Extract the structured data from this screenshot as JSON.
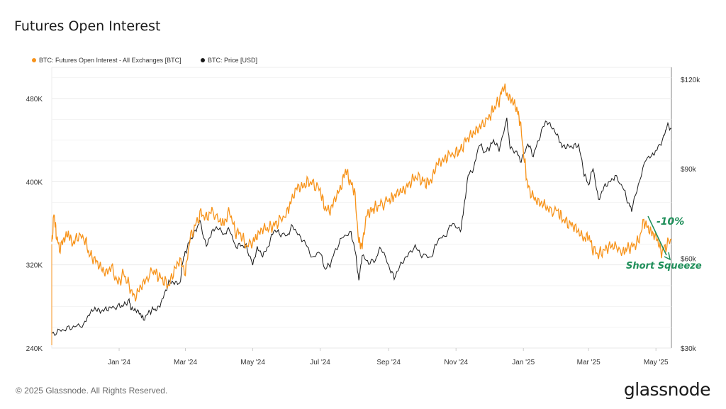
{
  "page": {
    "title": "Futures Open Interest",
    "footer": "© 2025 Glassnode. All Rights Reserved.",
    "brand": "glassnode"
  },
  "chart_data": {
    "type": "line",
    "x_start": "2023-11-01",
    "x_end": "2025-05-15",
    "x_ticks": [
      "Jan '24",
      "Mar '24",
      "May '24",
      "Jul '24",
      "Sep '24",
      "Nov '24",
      "Jan '25",
      "Mar '25",
      "May '25"
    ],
    "y_left_ticks": [
      "240K",
      "320K",
      "400K",
      "480K"
    ],
    "y_right_ticks": [
      "$30k",
      "$60k",
      "$90k",
      "$120k"
    ],
    "y_left_range": [
      240000,
      510000
    ],
    "y_right_range": [
      30000,
      124000
    ],
    "legend": "top-left",
    "grid": true,
    "colors": {
      "oi": "#f7931a",
      "price": "#1a1a1a",
      "annotation": "#1f8f5a"
    },
    "series": [
      {
        "name": "BTC: Futures Open Interest - All Exchanges [BTC]",
        "axis": "left",
        "color": "#f7931a",
        "points": [
          [
            "2023-11-01",
            340000
          ],
          [
            "2023-11-03",
            370000
          ],
          [
            "2023-11-05",
            350000
          ],
          [
            "2023-11-08",
            335000
          ],
          [
            "2023-11-12",
            345000
          ],
          [
            "2023-11-16",
            350000
          ],
          [
            "2023-11-20",
            340000
          ],
          [
            "2023-11-25",
            348000
          ],
          [
            "2023-12-01",
            345000
          ],
          [
            "2023-12-05",
            330000
          ],
          [
            "2023-12-10",
            325000
          ],
          [
            "2023-12-15",
            318000
          ],
          [
            "2023-12-20",
            312000
          ],
          [
            "2023-12-25",
            318000
          ],
          [
            "2023-12-31",
            302000
          ],
          [
            "2024-01-05",
            312000
          ],
          [
            "2024-01-10",
            300000
          ],
          [
            "2024-01-15",
            288000
          ],
          [
            "2024-01-20",
            298000
          ],
          [
            "2024-01-25",
            305000
          ],
          [
            "2024-02-01",
            315000
          ],
          [
            "2024-02-05",
            310000
          ],
          [
            "2024-02-10",
            305000
          ],
          [
            "2024-02-15",
            300000
          ],
          [
            "2024-02-20",
            315000
          ],
          [
            "2024-02-25",
            325000
          ],
          [
            "2024-03-01",
            312000
          ],
          [
            "2024-03-05",
            345000
          ],
          [
            "2024-03-10",
            358000
          ],
          [
            "2024-03-15",
            370000
          ],
          [
            "2024-03-20",
            365000
          ],
          [
            "2024-03-25",
            372000
          ],
          [
            "2024-04-01",
            362000
          ],
          [
            "2024-04-05",
            360000
          ],
          [
            "2024-04-10",
            372000
          ],
          [
            "2024-04-15",
            352000
          ],
          [
            "2024-04-20",
            350000
          ],
          [
            "2024-04-25",
            338000
          ],
          [
            "2024-05-01",
            342000
          ],
          [
            "2024-05-05",
            348000
          ],
          [
            "2024-05-10",
            355000
          ],
          [
            "2024-05-15",
            355000
          ],
          [
            "2024-05-20",
            358000
          ],
          [
            "2024-05-25",
            362000
          ],
          [
            "2024-06-01",
            370000
          ],
          [
            "2024-06-05",
            382000
          ],
          [
            "2024-06-10",
            395000
          ],
          [
            "2024-06-15",
            395000
          ],
          [
            "2024-06-20",
            400000
          ],
          [
            "2024-06-25",
            398000
          ],
          [
            "2024-07-01",
            392000
          ],
          [
            "2024-07-05",
            375000
          ],
          [
            "2024-07-10",
            372000
          ],
          [
            "2024-07-15",
            385000
          ],
          [
            "2024-07-20",
            395000
          ],
          [
            "2024-07-24",
            412000
          ],
          [
            "2024-07-28",
            400000
          ],
          [
            "2024-08-01",
            392000
          ],
          [
            "2024-08-05",
            342000
          ],
          [
            "2024-08-08",
            338000
          ],
          [
            "2024-08-12",
            368000
          ],
          [
            "2024-08-16",
            372000
          ],
          [
            "2024-08-20",
            375000
          ],
          [
            "2024-08-25",
            378000
          ],
          [
            "2024-09-01",
            382000
          ],
          [
            "2024-09-05",
            385000
          ],
          [
            "2024-09-10",
            390000
          ],
          [
            "2024-09-15",
            392000
          ],
          [
            "2024-09-20",
            398000
          ],
          [
            "2024-09-25",
            405000
          ],
          [
            "2024-10-01",
            402000
          ],
          [
            "2024-10-05",
            398000
          ],
          [
            "2024-10-10",
            402000
          ],
          [
            "2024-10-15",
            418000
          ],
          [
            "2024-10-20",
            420000
          ],
          [
            "2024-10-25",
            425000
          ],
          [
            "2024-11-01",
            428000
          ],
          [
            "2024-11-05",
            430000
          ],
          [
            "2024-11-10",
            440000
          ],
          [
            "2024-11-15",
            445000
          ],
          [
            "2024-11-20",
            450000
          ],
          [
            "2024-11-25",
            455000
          ],
          [
            "2024-12-01",
            462000
          ],
          [
            "2024-12-05",
            470000
          ],
          [
            "2024-12-10",
            478000
          ],
          [
            "2024-12-14",
            492000
          ],
          [
            "2024-12-18",
            482000
          ],
          [
            "2024-12-22",
            478000
          ],
          [
            "2024-12-26",
            470000
          ],
          [
            "2024-12-29",
            458000
          ],
          [
            "2025-01-02",
            420000
          ],
          [
            "2025-01-05",
            395000
          ],
          [
            "2025-01-10",
            385000
          ],
          [
            "2025-01-15",
            380000
          ],
          [
            "2025-01-20",
            378000
          ],
          [
            "2025-01-25",
            372000
          ],
          [
            "2025-02-01",
            372000
          ],
          [
            "2025-02-05",
            365000
          ],
          [
            "2025-02-10",
            360000
          ],
          [
            "2025-02-15",
            358000
          ],
          [
            "2025-02-20",
            352000
          ],
          [
            "2025-02-25",
            345000
          ],
          [
            "2025-03-01",
            348000
          ],
          [
            "2025-03-05",
            335000
          ],
          [
            "2025-03-10",
            330000
          ],
          [
            "2025-03-15",
            334000
          ],
          [
            "2025-03-20",
            338000
          ],
          [
            "2025-03-25",
            338000
          ],
          [
            "2025-04-01",
            332000
          ],
          [
            "2025-04-05",
            336000
          ],
          [
            "2025-04-10",
            338000
          ],
          [
            "2025-04-15",
            342000
          ],
          [
            "2025-04-20",
            362000
          ],
          [
            "2025-04-24",
            355000
          ],
          [
            "2025-04-28",
            350000
          ],
          [
            "2025-05-02",
            345000
          ],
          [
            "2025-05-06",
            332000
          ],
          [
            "2025-05-10",
            338000
          ],
          [
            "2025-05-15",
            345000
          ]
        ]
      },
      {
        "name": "BTC: Price [USD]",
        "axis": "right",
        "color": "#1a1a1a",
        "points": [
          [
            "2023-11-01",
            34500
          ],
          [
            "2023-11-08",
            35800
          ],
          [
            "2023-11-15",
            36500
          ],
          [
            "2023-11-22",
            37200
          ],
          [
            "2023-11-30",
            37800
          ],
          [
            "2023-12-05",
            41500
          ],
          [
            "2023-12-10",
            43200
          ],
          [
            "2023-12-15",
            42300
          ],
          [
            "2023-12-20",
            43000
          ],
          [
            "2023-12-25",
            43500
          ],
          [
            "2024-01-01",
            44000
          ],
          [
            "2024-01-05",
            44200
          ],
          [
            "2024-01-10",
            46000
          ],
          [
            "2024-01-12",
            43000
          ],
          [
            "2024-01-16",
            42800
          ],
          [
            "2024-01-20",
            41600
          ],
          [
            "2024-01-23",
            39600
          ],
          [
            "2024-01-28",
            42000
          ],
          [
            "2024-02-01",
            43000
          ],
          [
            "2024-02-05",
            43000
          ],
          [
            "2024-02-10",
            47000
          ],
          [
            "2024-02-15",
            52000
          ],
          [
            "2024-02-20",
            52000
          ],
          [
            "2024-02-25",
            51500
          ],
          [
            "2024-02-28",
            60000
          ],
          [
            "2024-03-01",
            62000
          ],
          [
            "2024-03-05",
            66000
          ],
          [
            "2024-03-10",
            69000
          ],
          [
            "2024-03-14",
            72500
          ],
          [
            "2024-03-20",
            64000
          ],
          [
            "2024-03-25",
            69000
          ],
          [
            "2024-03-30",
            70500
          ],
          [
            "2024-04-05",
            68000
          ],
          [
            "2024-04-10",
            70000
          ],
          [
            "2024-04-15",
            64000
          ],
          [
            "2024-04-20",
            64500
          ],
          [
            "2024-04-25",
            64000
          ],
          [
            "2024-05-01",
            58000
          ],
          [
            "2024-05-05",
            63500
          ],
          [
            "2024-05-10",
            61000
          ],
          [
            "2024-05-15",
            64000
          ],
          [
            "2024-05-20",
            69500
          ],
          [
            "2024-05-25",
            68500
          ],
          [
            "2024-06-01",
            67500
          ],
          [
            "2024-06-06",
            71000
          ],
          [
            "2024-06-12",
            67500
          ],
          [
            "2024-06-18",
            65000
          ],
          [
            "2024-06-24",
            60000
          ],
          [
            "2024-07-01",
            62500
          ],
          [
            "2024-07-05",
            56500
          ],
          [
            "2024-07-10",
            58000
          ],
          [
            "2024-07-15",
            63000
          ],
          [
            "2024-07-22",
            67500
          ],
          [
            "2024-07-29",
            68500
          ],
          [
            "2024-08-02",
            62000
          ],
          [
            "2024-08-05",
            52500
          ],
          [
            "2024-08-08",
            61000
          ],
          [
            "2024-08-14",
            58500
          ],
          [
            "2024-08-20",
            59500
          ],
          [
            "2024-08-25",
            64000
          ],
          [
            "2024-09-01",
            57500
          ],
          [
            "2024-09-06",
            53500
          ],
          [
            "2024-09-12",
            58000
          ],
          [
            "2024-09-18",
            61000
          ],
          [
            "2024-09-25",
            64000
          ],
          [
            "2024-10-01",
            61000
          ],
          [
            "2024-10-10",
            60500
          ],
          [
            "2024-10-15",
            66000
          ],
          [
            "2024-10-22",
            67500
          ],
          [
            "2024-10-29",
            72000
          ],
          [
            "2024-11-05",
            69000
          ],
          [
            "2024-11-08",
            76500
          ],
          [
            "2024-11-12",
            88000
          ],
          [
            "2024-11-17",
            90000
          ],
          [
            "2024-11-22",
            98500
          ],
          [
            "2024-11-27",
            95500
          ],
          [
            "2024-12-01",
            97000
          ],
          [
            "2024-12-05",
            99500
          ],
          [
            "2024-12-10",
            96500
          ],
          [
            "2024-12-17",
            106500
          ],
          [
            "2024-12-20",
            97000
          ],
          [
            "2024-12-26",
            95500
          ],
          [
            "2024-12-30",
            92500
          ],
          [
            "2025-01-05",
            98500
          ],
          [
            "2025-01-10",
            94500
          ],
          [
            "2025-01-15",
            100000
          ],
          [
            "2025-01-21",
            106000
          ],
          [
            "2025-01-26",
            104500
          ],
          [
            "2025-02-01",
            101000
          ],
          [
            "2025-02-05",
            97500
          ],
          [
            "2025-02-10",
            97500
          ],
          [
            "2025-02-15",
            97500
          ],
          [
            "2025-02-20",
            98000
          ],
          [
            "2025-02-25",
            88500
          ],
          [
            "2025-03-01",
            84500
          ],
          [
            "2025-03-05",
            90500
          ],
          [
            "2025-03-10",
            79500
          ],
          [
            "2025-03-15",
            84000
          ],
          [
            "2025-03-20",
            85500
          ],
          [
            "2025-03-25",
            87500
          ],
          [
            "2025-04-01",
            84000
          ],
          [
            "2025-04-06",
            78500
          ],
          [
            "2025-04-09",
            76500
          ],
          [
            "2025-04-15",
            84500
          ],
          [
            "2025-04-22",
            93500
          ],
          [
            "2025-04-28",
            94500
          ],
          [
            "2025-05-02",
            96500
          ],
          [
            "2025-05-08",
            100500
          ],
          [
            "2025-05-11",
            104500
          ],
          [
            "2025-05-15",
            103500
          ]
        ]
      }
    ],
    "annotations": [
      {
        "text": "-10%"
      },
      {
        "text": "Short Squeeze"
      }
    ]
  }
}
